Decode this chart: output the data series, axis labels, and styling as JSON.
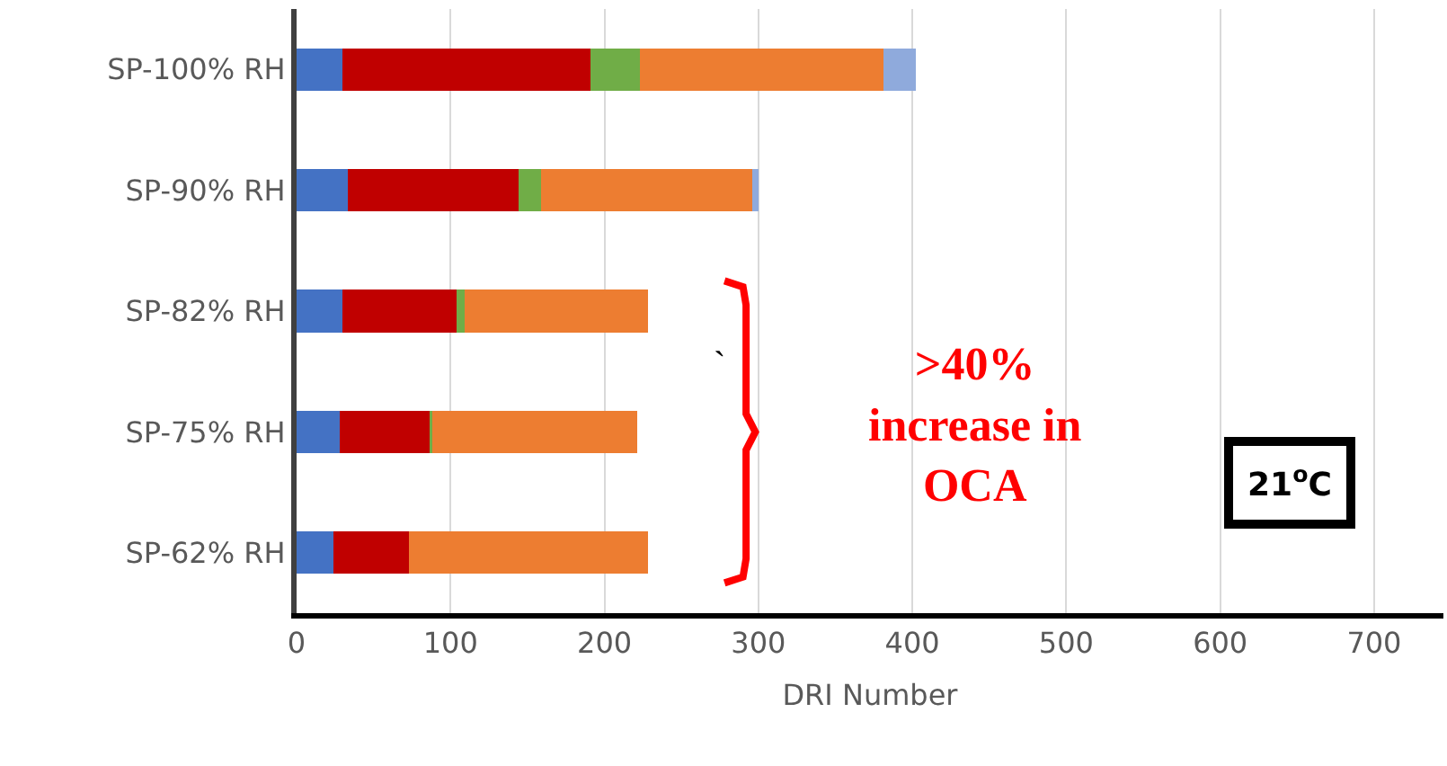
{
  "chart_data": {
    "type": "bar",
    "orientation": "horizontal",
    "stacked": true,
    "categories": [
      "SP-100% RH",
      "SP-90% RH",
      "SP-82% RH",
      "SP-75% RH",
      "SP-62% RH"
    ],
    "series": [
      {
        "color": "#4472c4",
        "values": [
          30,
          33,
          30,
          28,
          24
        ]
      },
      {
        "color": "#c00000",
        "values": [
          161,
          111,
          74,
          59,
          49
        ]
      },
      {
        "color": "#70ad47",
        "values": [
          32,
          15,
          5,
          1,
          0
        ]
      },
      {
        "color": "#ed7d31",
        "values": [
          158,
          137,
          119,
          133,
          155
        ]
      },
      {
        "color": "#8faadc",
        "values": [
          21,
          4,
          0,
          0,
          0
        ]
      }
    ],
    "xlabel": "DRI Number",
    "xlim": [
      0,
      745
    ],
    "xticks": [
      0,
      100,
      200,
      300,
      400,
      500,
      600,
      700
    ],
    "grid": "x",
    "annotations": [
      ">40%\nincrease in\nOCA",
      "`",
      "21$^{o}$C"
    ]
  }
}
